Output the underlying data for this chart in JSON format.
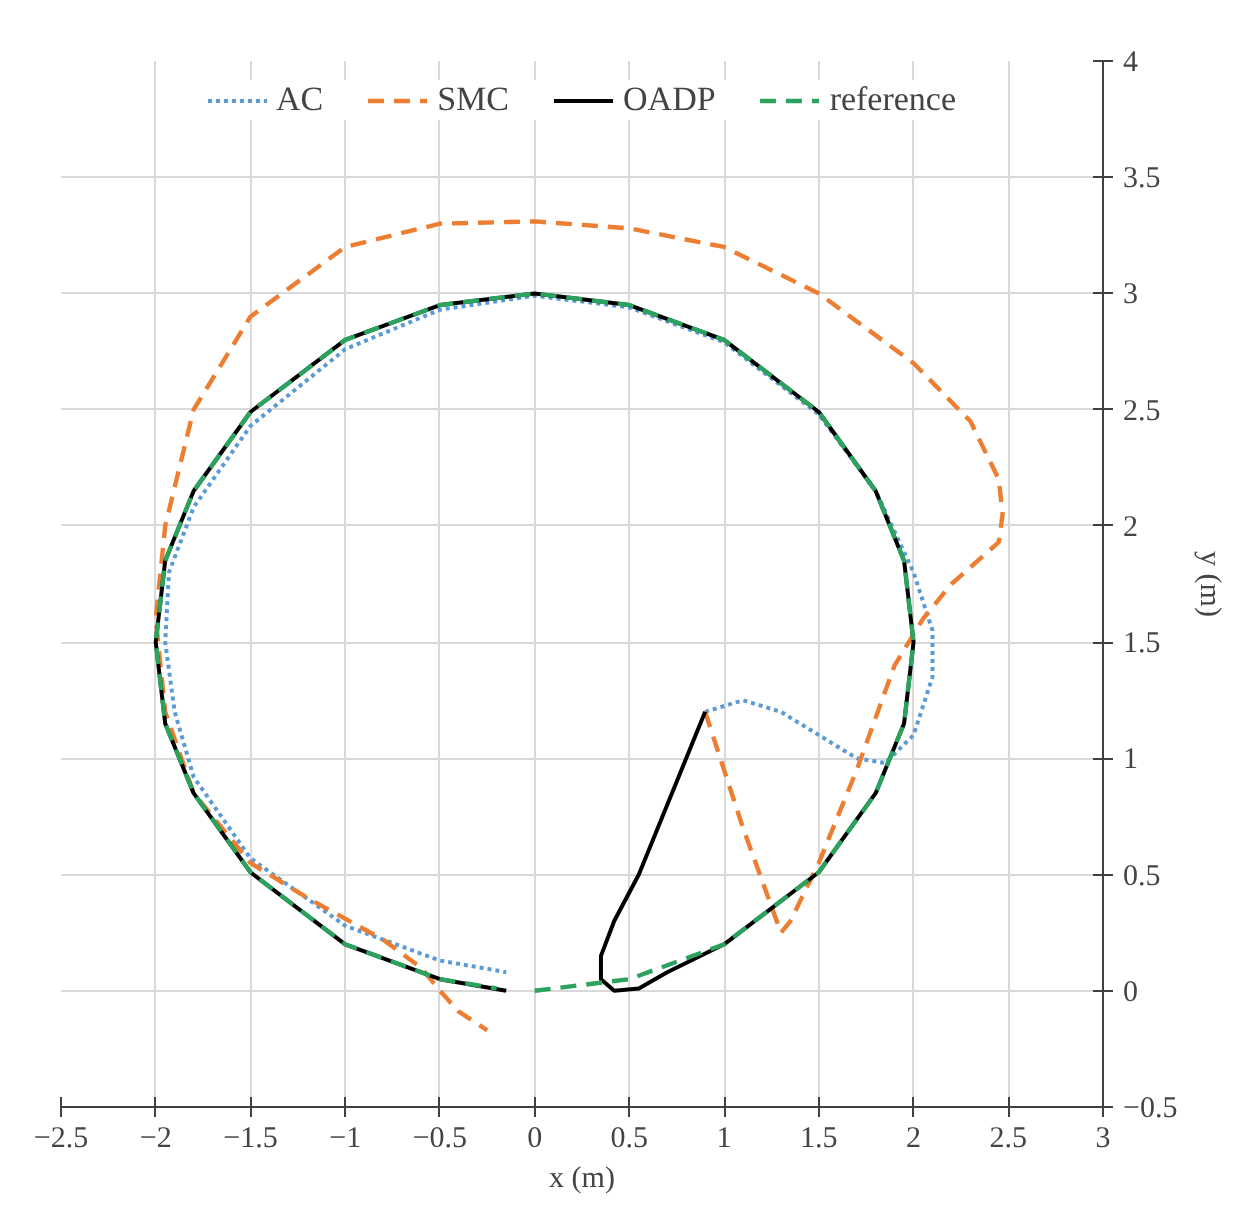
{
  "chart_data": {
    "type": "line",
    "xlabel": "x (m)",
    "ylabel": "y (m)",
    "xlim": [
      -2.5,
      3
    ],
    "ylim": [
      -0.5,
      4
    ],
    "xticks": [
      -2.5,
      -2,
      -1.5,
      -1,
      -0.5,
      0,
      0.5,
      1,
      1.5,
      2,
      2.5,
      3
    ],
    "yticks": [
      -0.5,
      0,
      0.5,
      1,
      1.5,
      2,
      2.5,
      3,
      3.5,
      4
    ],
    "grid": true,
    "legend": "top",
    "marker": "none",
    "series": [
      {
        "name": "AC",
        "color": "#5b9bd5",
        "line_style": "dotted",
        "x": [
          0.9,
          1.1,
          1.3,
          1.5,
          1.7,
          1.85,
          2.0,
          2.1,
          2.1,
          2.0,
          1.8,
          1.5,
          1.0,
          0.5,
          0,
          -0.5,
          -1.0,
          -1.5,
          -1.8,
          -1.93,
          -1.95,
          -1.9,
          -1.8,
          -1.5,
          -1.0,
          -0.5,
          -0.15
        ],
        "values": [
          1.2,
          1.25,
          1.2,
          1.1,
          1.0,
          0.98,
          1.1,
          1.35,
          1.55,
          1.8,
          2.15,
          2.48,
          2.79,
          2.94,
          2.99,
          2.93,
          2.76,
          2.43,
          2.08,
          1.8,
          1.5,
          1.2,
          0.92,
          0.57,
          0.28,
          0.13,
          0.08
        ]
      },
      {
        "name": "SMC",
        "color": "#ed7d31",
        "line_style": "dashed",
        "x": [
          0.9,
          1.1,
          1.3,
          1.35,
          1.5,
          1.7,
          1.9,
          2.05,
          2.2,
          2.45,
          2.47,
          2.45,
          2.3,
          2.0,
          1.5,
          1.0,
          0.5,
          0,
          -0.5,
          -1.0,
          -1.5,
          -1.8,
          -1.95,
          -2.0,
          -1.95,
          -1.8,
          -1.5,
          -1.2,
          -0.8,
          -0.6,
          -0.5,
          -0.4,
          -0.25
        ],
        "values": [
          1.2,
          0.7,
          0.25,
          0.3,
          0.55,
          0.95,
          1.4,
          1.6,
          1.75,
          1.93,
          2.05,
          2.2,
          2.45,
          2.7,
          3.0,
          3.2,
          3.28,
          3.31,
          3.3,
          3.2,
          2.9,
          2.5,
          2.0,
          1.6,
          1.2,
          0.85,
          0.55,
          0.4,
          0.22,
          0.1,
          0,
          -0.09,
          -0.17
        ]
      },
      {
        "name": "OADP",
        "color": "#000000",
        "line_style": "solid",
        "x": [
          0.9,
          0.7,
          0.55,
          0.42,
          0.35,
          0.35,
          0.42,
          0.55,
          0.7,
          1.0,
          1.5,
          1.8,
          1.95,
          2.0,
          1.95,
          1.8,
          1.5,
          1.0,
          0.5,
          0,
          -0.5,
          -1.0,
          -1.5,
          -1.8,
          -1.95,
          -2.0,
          -1.95,
          -1.8,
          -1.5,
          -1.0,
          -0.5,
          -0.15
        ],
        "values": [
          1.2,
          0.8,
          0.5,
          0.3,
          0.15,
          0.05,
          0.0,
          0.01,
          0.08,
          0.2,
          0.51,
          0.85,
          1.15,
          1.5,
          1.85,
          2.15,
          2.49,
          2.8,
          2.95,
          3.0,
          2.95,
          2.8,
          2.49,
          2.15,
          1.85,
          1.5,
          1.15,
          0.85,
          0.51,
          0.2,
          0.05,
          0.0
        ]
      },
      {
        "name": "reference",
        "color": "#2ca25f",
        "line_style": "dashed",
        "x": [
          0,
          0.5,
          1.0,
          1.5,
          1.8,
          1.95,
          2.0,
          1.95,
          1.8,
          1.5,
          1.0,
          0.5,
          0,
          -0.5,
          -1.0,
          -1.5,
          -1.8,
          -1.95,
          -2.0,
          -1.95,
          -1.8,
          -1.5,
          -1.0,
          -0.5,
          -0.2
        ],
        "values": [
          0,
          0.05,
          0.2,
          0.51,
          0.85,
          1.15,
          1.5,
          1.85,
          2.15,
          2.49,
          2.8,
          2.95,
          3.0,
          2.95,
          2.8,
          2.49,
          2.15,
          1.85,
          1.5,
          1.15,
          0.85,
          0.51,
          0.2,
          0.05,
          0.01
        ]
      }
    ]
  }
}
